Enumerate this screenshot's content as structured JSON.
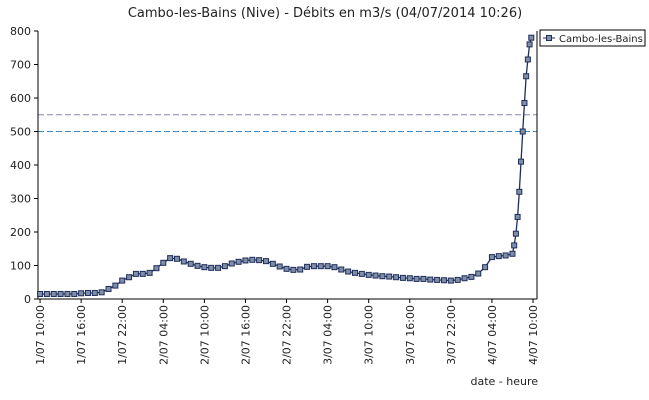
{
  "chart_data": {
    "type": "line",
    "title": "Cambo-les-Bains (Nive) - Débits en m3/s (04/07/2014 10:26)",
    "xlabel": "date - heure",
    "x": [
      "1/07 10:00",
      "1/07 11:00",
      "1/07 12:00",
      "1/07 13:00",
      "1/07 14:00",
      "1/07 15:00",
      "1/07 16:00",
      "1/07 17:00",
      "1/07 18:00",
      "1/07 19:00",
      "1/07 20:00",
      "1/07 21:00",
      "1/07 22:00",
      "1/07 23:00",
      "2/07 00:00",
      "2/07 01:00",
      "2/07 02:00",
      "2/07 03:00",
      "2/07 04:00",
      "2/07 05:00",
      "2/07 06:00",
      "2/07 07:00",
      "2/07 08:00",
      "2/07 09:00",
      "2/07 10:00",
      "2/07 11:00",
      "2/07 12:00",
      "2/07 13:00",
      "2/07 14:00",
      "2/07 15:00",
      "2/07 16:00",
      "2/07 17:00",
      "2/07 18:00",
      "2/07 19:00",
      "2/07 20:00",
      "2/07 21:00",
      "2/07 22:00",
      "2/07 23:00",
      "3/07 00:00",
      "3/07 01:00",
      "3/07 02:00",
      "3/07 03:00",
      "3/07 04:00",
      "3/07 05:00",
      "3/07 06:00",
      "3/07 07:00",
      "3/07 08:00",
      "3/07 09:00",
      "3/07 10:00",
      "3/07 11:00",
      "3/07 12:00",
      "3/07 13:00",
      "3/07 14:00",
      "3/07 15:00",
      "3/07 16:00",
      "3/07 17:00",
      "3/07 18:00",
      "3/07 19:00",
      "3/07 20:00",
      "3/07 21:00",
      "3/07 22:00",
      "3/07 23:00",
      "4/07 00:00",
      "4/07 01:00",
      "4/07 02:00",
      "4/07 03:00",
      "4/07 04:00",
      "4/07 05:00",
      "4/07 06:00",
      "4/07 07:00",
      "4/07 07:15",
      "4/07 07:30",
      "4/07 07:45",
      "4/07 08:00",
      "4/07 08:15",
      "4/07 08:30",
      "4/07 08:45",
      "4/07 09:00",
      "4/07 09:15",
      "4/07 09:30",
      "4/07 09:45"
    ],
    "series": [
      {
        "name": "Cambo-les-Bains",
        "color": "#1f2d5c",
        "marker": "#7f8fa8",
        "values": [
          15,
          15,
          15,
          15,
          15,
          15,
          17,
          18,
          18,
          20,
          30,
          40,
          55,
          65,
          75,
          75,
          78,
          92,
          108,
          122,
          120,
          112,
          105,
          99,
          95,
          93,
          93,
          98,
          106,
          111,
          115,
          117,
          116,
          113,
          105,
          97,
          90,
          87,
          88,
          96,
          98,
          98,
          98,
          95,
          88,
          82,
          78,
          75,
          72,
          70,
          68,
          67,
          65,
          63,
          62,
          60,
          60,
          58,
          57,
          56,
          55,
          57,
          62,
          66,
          76,
          95,
          125,
          128,
          130,
          135,
          160,
          195,
          245,
          320,
          410,
          500,
          585,
          665,
          715,
          760,
          780
        ]
      }
    ],
    "thresholds": [
      {
        "value": 550,
        "color": "#8888aa"
      },
      {
        "value": 500,
        "color": "#3a8ac8"
      }
    ],
    "xlim": [
      "1/07 09:42",
      "4/07 10:35"
    ],
    "xticks": [
      "1/07 10:00",
      "1/07 16:00",
      "1/07 22:00",
      "2/07 04:00",
      "2/07 10:00",
      "2/07 16:00",
      "2/07 22:00",
      "3/07 04:00",
      "3/07 10:00",
      "3/07 16:00",
      "3/07 22:00",
      "4/07 04:00",
      "4/07 10:00"
    ],
    "ylim": [
      0,
      800
    ],
    "yticks": [
      0,
      100,
      200,
      300,
      400,
      500,
      600,
      700,
      800
    ],
    "legend": "top-right"
  }
}
